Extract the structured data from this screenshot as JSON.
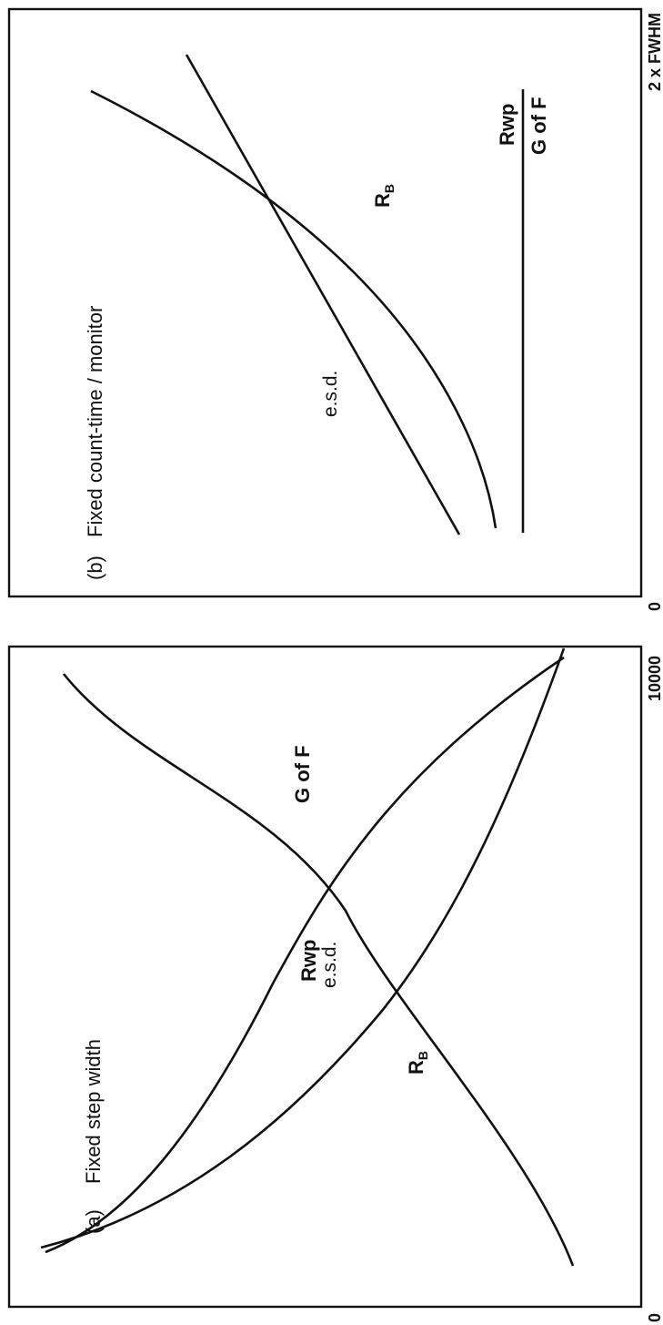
{
  "chart_data": [
    {
      "type": "line",
      "panel_label": "(a)",
      "title": "Fixed step width",
      "x_ticks": [
        "0",
        "10000"
      ],
      "xlim": [
        0,
        10000
      ],
      "series": [
        {
          "name": "Rwp e.s.d.",
          "x": [
            400,
            1500,
            3000,
            4500,
            6000,
            7500,
            8800
          ],
          "y": [
            0.93,
            0.72,
            0.52,
            0.38,
            0.28,
            0.22,
            0.2
          ]
        },
        {
          "name": "RB",
          "x": [
            400,
            1200,
            2000,
            3000,
            4500,
            6000,
            7500,
            8800
          ],
          "y": [
            0.97,
            0.6,
            0.42,
            0.32,
            0.26,
            0.23,
            0.21,
            0.2
          ]
        },
        {
          "name": "G of F",
          "x": [
            400,
            1500,
            3000,
            4500,
            6000,
            7500,
            8800
          ],
          "y": [
            0.04,
            0.07,
            0.12,
            0.22,
            0.38,
            0.62,
            0.94
          ]
        }
      ]
    },
    {
      "type": "line",
      "panel_label": "(b)",
      "title": "Fixed count-time / monitor",
      "x_ticks": [
        "0",
        "2 x FWHM"
      ],
      "xlim": [
        0,
        2
      ],
      "series": [
        {
          "name": "Rwp G of F",
          "x": [
            0.15,
            1.8
          ],
          "y": [
            0.1,
            0.1
          ]
        },
        {
          "name": "RB",
          "x": [
            0.15,
            0.5,
            0.9,
            1.2,
            1.5,
            1.8
          ],
          "y": [
            0.2,
            0.22,
            0.3,
            0.42,
            0.62,
            0.93
          ]
        },
        {
          "name": "e.s.d.",
          "x": [
            0.15,
            1.8
          ],
          "y": [
            0.3,
            0.87
          ]
        }
      ]
    }
  ],
  "panels": {
    "a": {
      "label": "(a)",
      "title": "Fixed step width",
      "rwp": "Rwp",
      "esd": "e.s.d.",
      "rb": "R",
      "rb_sub": "B",
      "gof": "G of F",
      "tick_start": "0",
      "tick_end": "10000"
    },
    "b": {
      "label": "(b)",
      "title": "Fixed count-time / monitor",
      "esd": "e.s.d.",
      "rb": "R",
      "rb_sub": "B",
      "rwp": "Rwp",
      "gof": "G of F",
      "tick_start": "0",
      "tick_end": "2 x FWHM"
    }
  }
}
